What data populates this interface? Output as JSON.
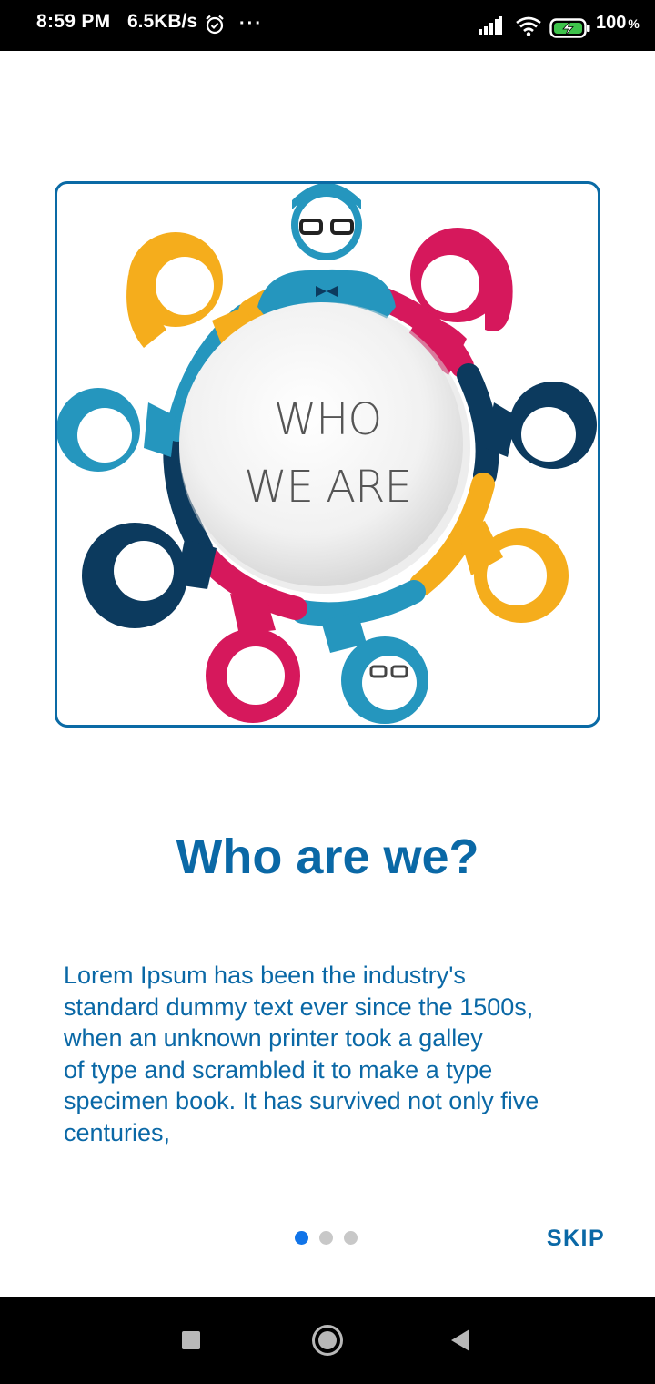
{
  "status_bar": {
    "time": "8:59 PM",
    "net_speed": "6.5KB/s",
    "battery_level": "100",
    "battery_unit": "%",
    "icons": [
      "alarm-icon",
      "more-dots-icon",
      "signal-icon",
      "wifi-icon",
      "battery-charging-icon"
    ]
  },
  "hero": {
    "caption_line1": "WHO",
    "caption_line2": "WE ARE",
    "border_color": "#0a6aa5",
    "figure_colors": [
      "#2596be",
      "#d6185c",
      "#f5ad1c",
      "#0c3a5e"
    ]
  },
  "content": {
    "title": "Who are we?",
    "body": "Lorem Ipsum has been the industry's\nstandard dummy text ever since the 1500s,\nwhen an unknown printer took a galley\nof type and scrambled it to make a type\nspecimen book. It has survived not only five\ncenturies,"
  },
  "pager": {
    "page_count": 3,
    "active_index": 0,
    "active_color": "#1174e8",
    "inactive_color": "#c8c8c8"
  },
  "actions": {
    "skip_label": "SKIP"
  },
  "nav_bar": {
    "icons": [
      "recents-square-icon",
      "home-circle-icon",
      "back-triangle-icon"
    ]
  },
  "colors": {
    "accent": "#0a68a6"
  }
}
